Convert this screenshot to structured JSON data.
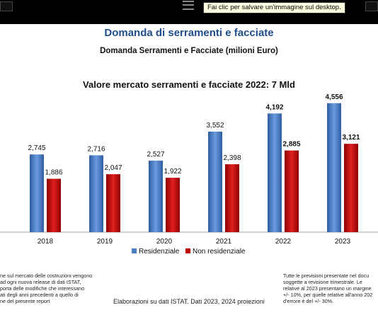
{
  "tooltip": {
    "text": "Fai clic per salvare un'immagine sul desktop."
  },
  "slide": {
    "title": "Domanda di serramenti e facciate",
    "subtitle": "Domanda Serramenti e Facciate (milioni Euro)",
    "footnote_left": [
      "ne sul mercato delle costruzioni vengono",
      "ad ogni nuova release di dati ISTAT,",
      "porta delle modifiche che interessano",
      "ati degli anni precedenti a quello di",
      "ne del presente report"
    ],
    "footnote_center": "Elaborazioni su dati ISTAT. Dati 2023, 2024 proiezioni",
    "footnote_right": [
      "Tutte le previsioni presentate nel docu",
      "soggette a revisione trimestrale. Le",
      "relative al 2023 presentano un margine",
      "+/- 10%, per quelle relative all'anno 202",
      "d'errore è del +/- 30%."
    ]
  },
  "colors": {
    "residenziale": "#4a7fc6",
    "non_residenziale": "#c00000",
    "title_blue": "#1f4e8c"
  },
  "chart_data": {
    "type": "bar",
    "title": "Valore mercato serramenti e facciate 2022: 7 Mld",
    "categories": [
      "2018",
      "2019",
      "2020",
      "2021",
      "2022",
      "2023"
    ],
    "series": [
      {
        "name": "Residenziale",
        "values": [
          2745,
          2716,
          2527,
          3552,
          4192,
          4556
        ],
        "labels": [
          "2,745",
          "2,716",
          "2,527",
          "3,552",
          "4,192",
          "4,556"
        ]
      },
      {
        "name": "Non residenziale",
        "values": [
          1886,
          2047,
          1922,
          2398,
          2885,
          3121
        ],
        "labels": [
          "1,886",
          "2,047",
          "1,922",
          "2,398",
          "2,885",
          "3,121"
        ]
      }
    ],
    "bold_labels_from_index": 4,
    "ylim": [
      0,
      5000
    ],
    "legend_position": "bottom",
    "grid": false
  }
}
